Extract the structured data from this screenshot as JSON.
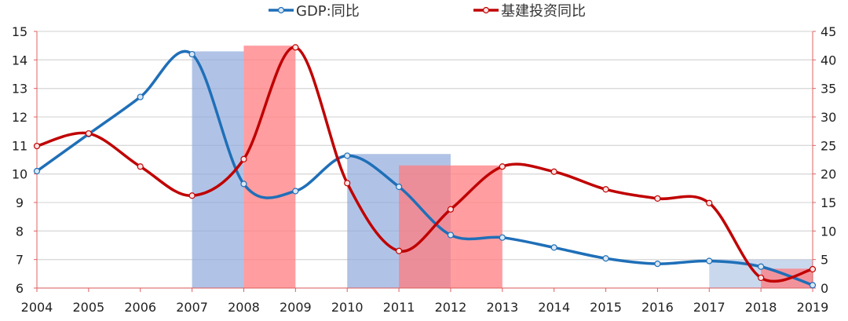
{
  "chart_data": {
    "type": "line",
    "title": "",
    "categories": [
      "2004",
      "2005",
      "2006",
      "2007",
      "2008",
      "2009",
      "2010",
      "2011",
      "2012",
      "2013",
      "2014",
      "2015",
      "2016",
      "2017",
      "2018",
      "2019"
    ],
    "series": [
      {
        "name": "GDP:同比",
        "axis": "left",
        "color": "#1f6fb8",
        "values": [
          10.1,
          11.4,
          12.7,
          14.2,
          9.65,
          9.4,
          10.64,
          9.55,
          7.86,
          7.77,
          7.42,
          7.04,
          6.85,
          6.95,
          6.75,
          6.1
        ]
      },
      {
        "name": "基建投资同比",
        "axis": "right",
        "color": "#c00000",
        "values": [
          24.9,
          27.1,
          21.3,
          16.2,
          22.6,
          42.2,
          18.4,
          6.5,
          13.8,
          21.3,
          20.4,
          17.3,
          15.7,
          14.9,
          1.8,
          3.3
        ]
      }
    ],
    "shaded_regions": [
      {
        "from": "2007",
        "to": "2008",
        "axis": "left",
        "value": 14.3,
        "color": "#8faadc",
        "opacity": 0.7
      },
      {
        "from": "2008",
        "to": "2009",
        "axis": "right",
        "value": 42.5,
        "color": "#ff7c80",
        "opacity": 0.75
      },
      {
        "from": "2010",
        "to": "2012",
        "axis": "left",
        "value": 10.7,
        "color": "#8faadc",
        "opacity": 0.7
      },
      {
        "from": "2011",
        "to": "2013",
        "axis": "right",
        "value": 21.5,
        "color": "#ff7c80",
        "opacity": 0.75
      },
      {
        "from": "2017",
        "to": "2019",
        "axis": "left",
        "value": 7.0,
        "color": "#b4c7e7",
        "opacity": 0.7
      },
      {
        "from": "2018",
        "to": "2019",
        "axis": "right",
        "value": 3.4,
        "color": "#ff7c80",
        "opacity": 0.75
      }
    ],
    "y_left": {
      "ylim": [
        6,
        15
      ],
      "ticks": [
        "6",
        "7",
        "8",
        "9",
        "10",
        "11",
        "12",
        "13",
        "14",
        "15"
      ]
    },
    "y_right": {
      "ylim": [
        0,
        45
      ],
      "ticks": [
        "0",
        "5",
        "10",
        "15",
        "20",
        "25",
        "30",
        "35",
        "40",
        "45"
      ]
    },
    "xlabel": "",
    "ylabel": "",
    "grid": true,
    "legend_position": "top-center"
  }
}
